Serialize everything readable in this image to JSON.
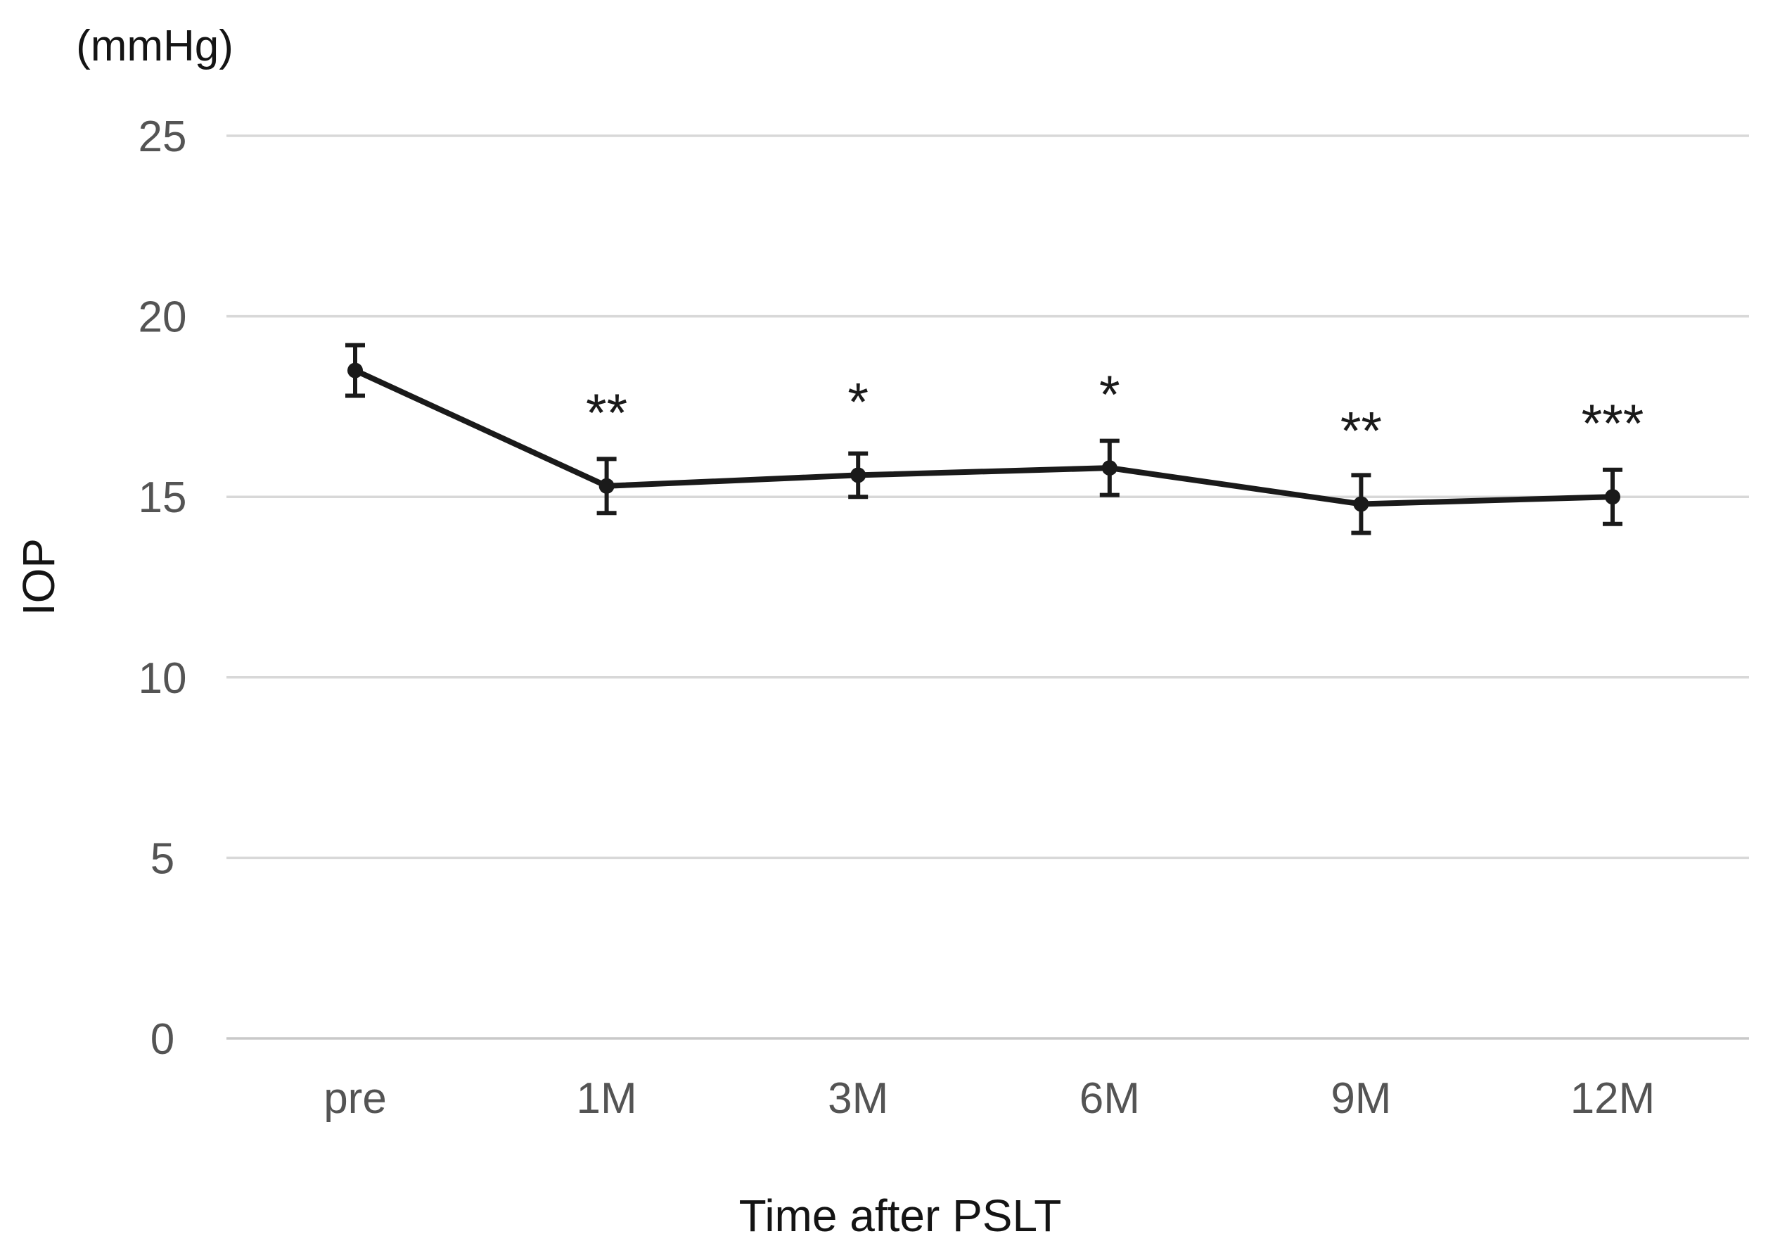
{
  "chart_data": {
    "type": "line",
    "title": "",
    "unit_label": "(mmHg)",
    "ylabel": "IOP",
    "xlabel": "Time after PSLT",
    "categories": [
      "pre",
      "1M",
      "3M",
      "6M",
      "9M",
      "12M"
    ],
    "series": [
      {
        "name": "IOP",
        "values": [
          18.5,
          15.3,
          15.6,
          15.8,
          14.8,
          15.0
        ],
        "errors": [
          0.7,
          0.75,
          0.6,
          0.75,
          0.8,
          0.75
        ],
        "significance": [
          "",
          "**",
          "*",
          "*",
          "**",
          "***"
        ]
      }
    ],
    "yticks": [
      0,
      5,
      10,
      15,
      20,
      25
    ],
    "ylim": [
      0,
      25
    ],
    "grid": true,
    "legend": false,
    "marker": "filled-circle",
    "error_bar_caps": true,
    "colors": {
      "line": "#1a1a1a",
      "marker": "#1a1a1a",
      "error_bar": "#1a1a1a",
      "gridline": "#d8d8d8",
      "axis_line": "#c9c9c9",
      "tick_text": "#545454",
      "title_text": "#141414"
    }
  }
}
